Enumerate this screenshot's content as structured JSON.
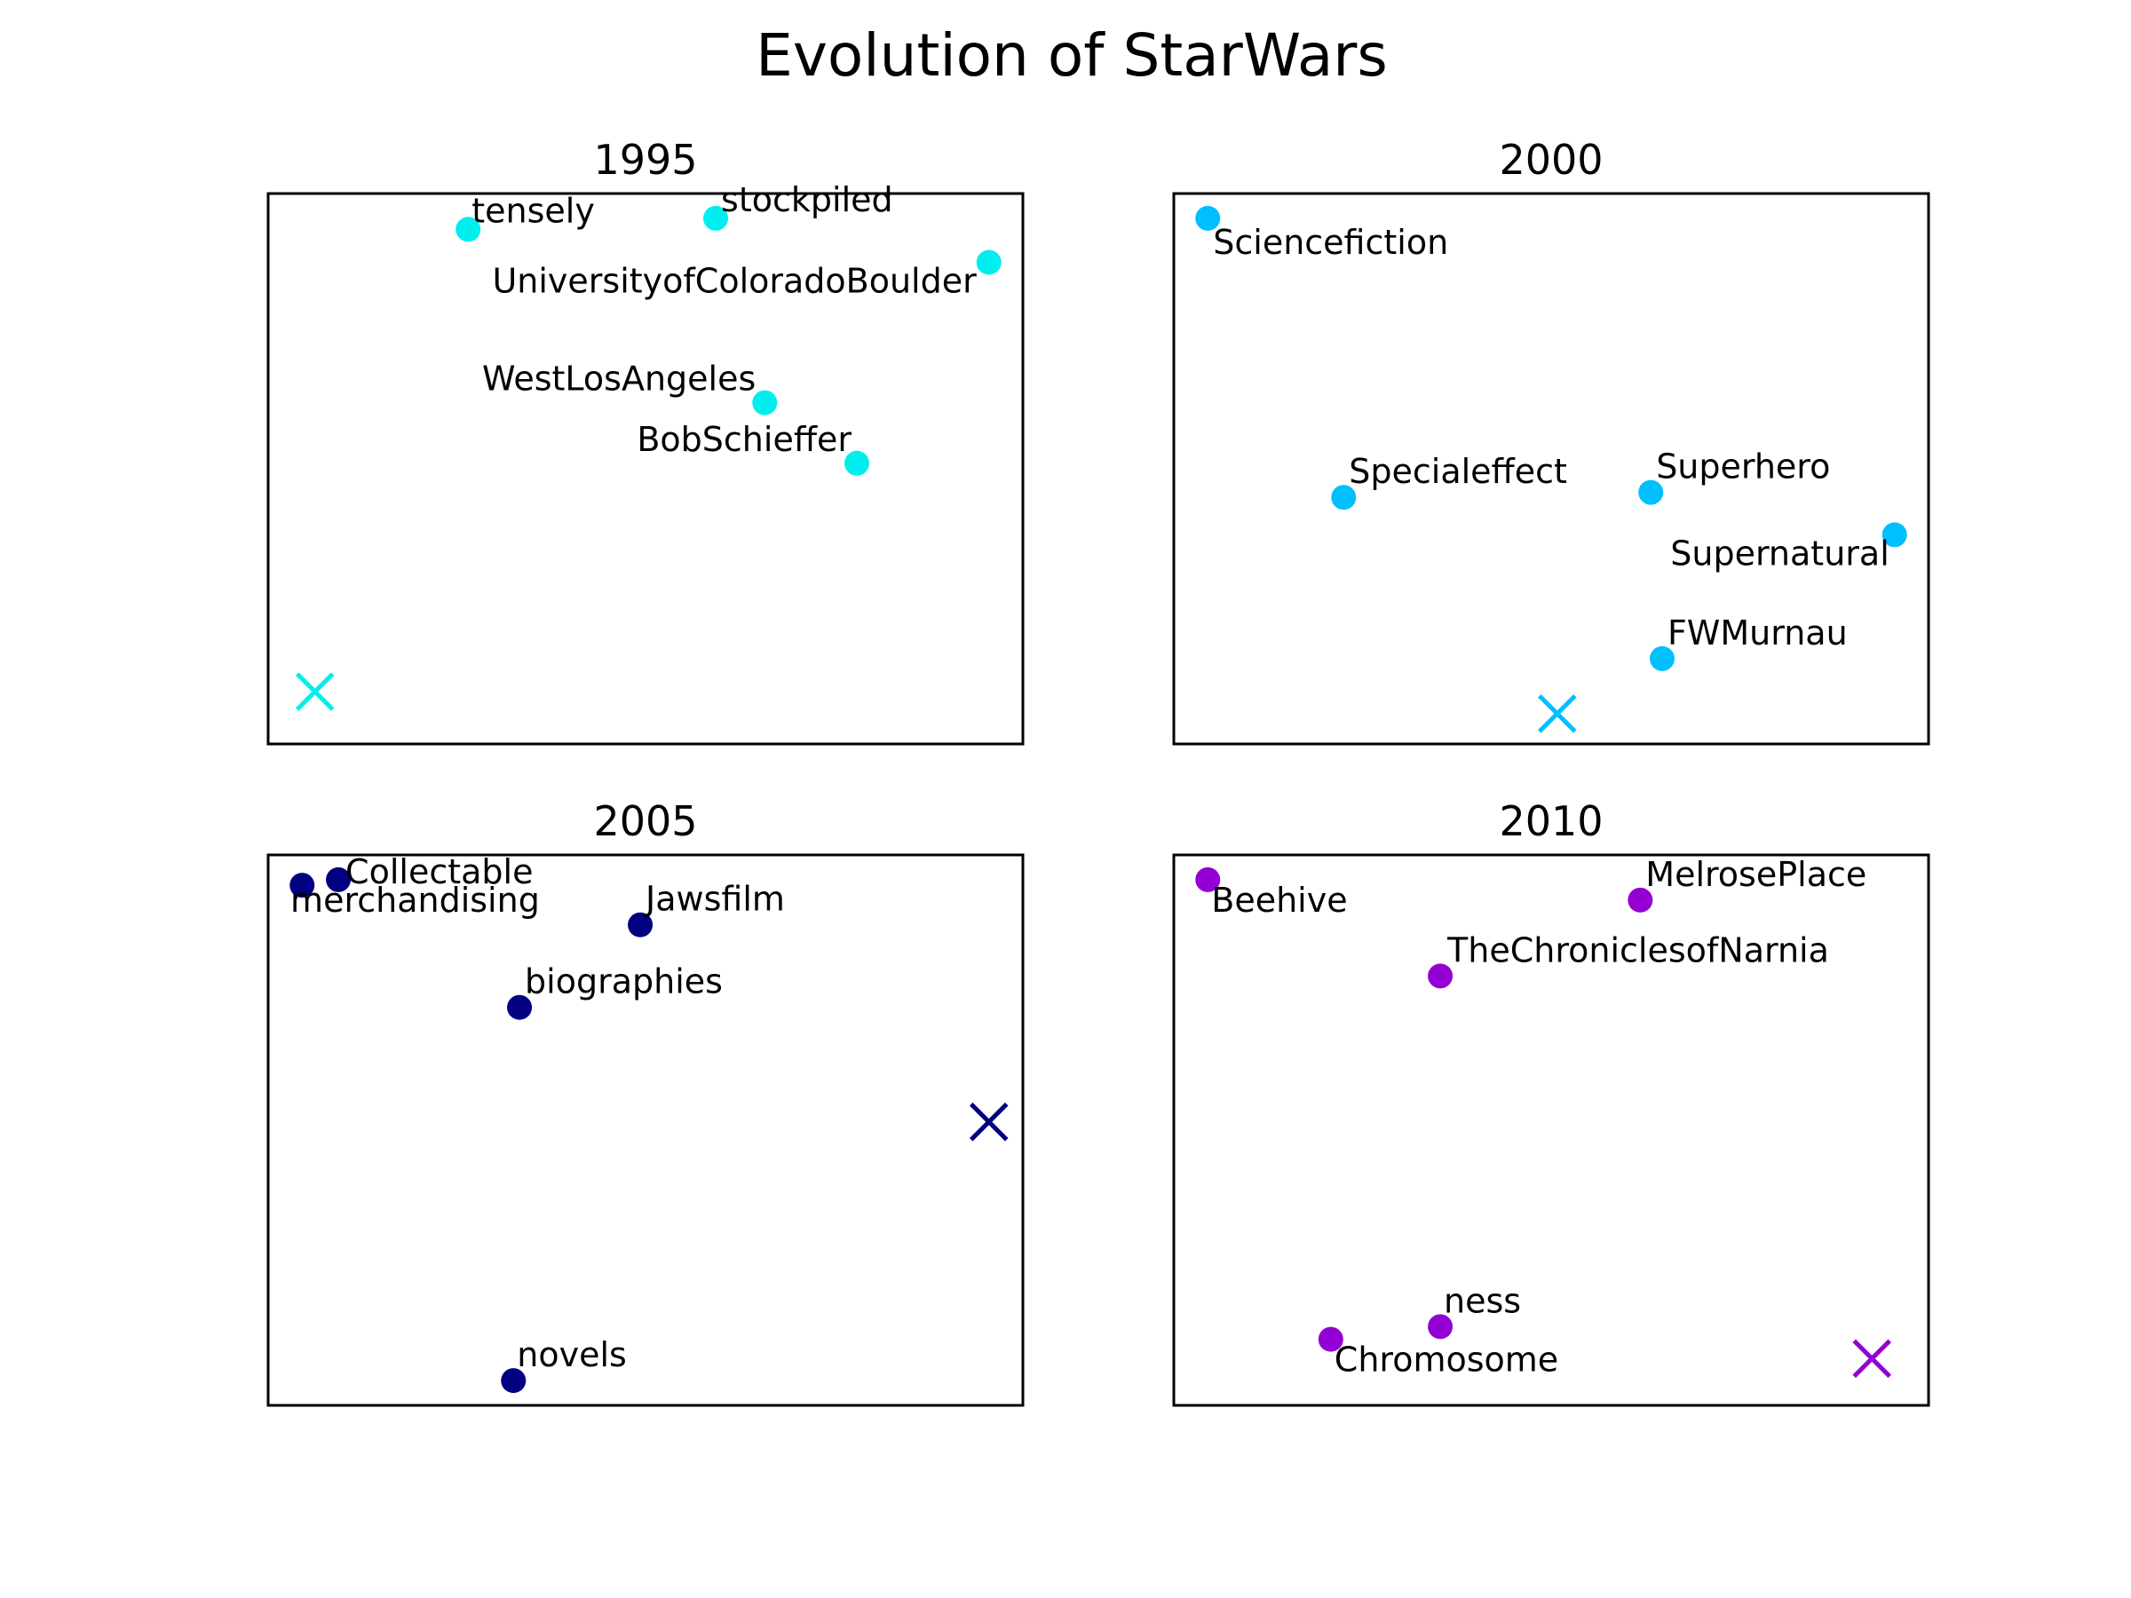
{
  "chart_data": {
    "title": "Evolution of StarWars",
    "type": "scatter",
    "grid": false,
    "xlim": [
      0,
      1
    ],
    "ylim": [
      0,
      1
    ],
    "panels": [
      {
        "title": "1995",
        "color": "#00eeee",
        "points": [
          {
            "label": "tensely",
            "x": 0.265,
            "y": 0.935
          },
          {
            "label": "stockpiled",
            "x": 0.593,
            "y": 0.955
          },
          {
            "label": "UniversityofColoradoBoulder",
            "x": 0.955,
            "y": 0.875
          },
          {
            "label": "WestLosAngeles",
            "x": 0.658,
            "y": 0.62
          },
          {
            "label": "BobSchieffer",
            "x": 0.78,
            "y": 0.51
          }
        ],
        "marker": {
          "x": 0.062,
          "y": 0.095
        }
      },
      {
        "title": "2000",
        "color": "#00bfff",
        "points": [
          {
            "label": "Sciencefiction",
            "x": 0.045,
            "y": 0.955
          },
          {
            "label": "Specialeffect",
            "x": 0.225,
            "y": 0.448
          },
          {
            "label": "Superhero",
            "x": 0.632,
            "y": 0.457
          },
          {
            "label": "Supernatural",
            "x": 0.955,
            "y": 0.38
          },
          {
            "label": "FWMurnau",
            "x": 0.647,
            "y": 0.155
          }
        ],
        "marker": {
          "x": 0.508,
          "y": 0.055
        }
      },
      {
        "title": "2005",
        "color": "#000080",
        "points": [
          {
            "label": "",
            "x": 0.045,
            "y": 0.945
          },
          {
            "label": "Collectable",
            "x": 0.093,
            "y": 0.955
          },
          {
            "label": "merchandising",
            "x": null,
            "y": null
          },
          {
            "label": "Jawsfilm",
            "x": 0.493,
            "y": 0.873
          },
          {
            "label": "biographies",
            "x": 0.333,
            "y": 0.723
          },
          {
            "label": "novels",
            "x": 0.325,
            "y": 0.045
          }
        ],
        "marker": {
          "x": 0.955,
          "y": 0.515
        }
      },
      {
        "title": "2010",
        "color": "#9400d3",
        "points": [
          {
            "label": "Beehive",
            "x": 0.045,
            "y": 0.955
          },
          {
            "label": "MelrosePlace",
            "x": 0.618,
            "y": 0.918
          },
          {
            "label": "TheChroniclesofNarnia",
            "x": 0.353,
            "y": 0.78
          },
          {
            "label": "ness",
            "x": 0.353,
            "y": 0.143
          },
          {
            "label": "Chromosome",
            "x": 0.208,
            "y": 0.12
          }
        ],
        "marker": {
          "x": 0.925,
          "y": 0.085
        }
      }
    ]
  }
}
